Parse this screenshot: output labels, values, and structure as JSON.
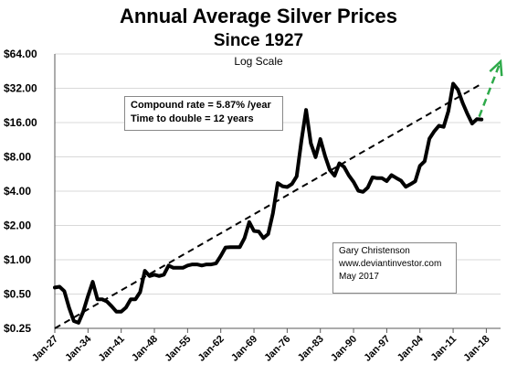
{
  "title": "Annual Average Silver Prices",
  "subtitle": "Since 1927",
  "scale_note": "Log Scale",
  "annotation_rate": {
    "line1": "Compound rate = 5.87% /year",
    "line2": "Time to double = 12 years"
  },
  "credit": {
    "line1": "Gary Christenson",
    "line2": "www.deviantinvestor.com",
    "line3": "May 2017"
  },
  "colors": {
    "price_line": "#000000",
    "trend_line": "#000000",
    "projection": "#2eaa4a"
  },
  "chart_data": {
    "type": "line",
    "y_scale": "log2",
    "ylim": [
      0.25,
      64
    ],
    "xlim": [
      1927,
      2021
    ],
    "y_ticks": [
      0.25,
      0.5,
      1,
      2,
      4,
      8,
      16,
      32,
      64
    ],
    "y_tick_labels": [
      "$0.25",
      "$0.50",
      "$1.00",
      "$2.00",
      "$4.00",
      "$8.00",
      "$16.00",
      "$32.00",
      "$64.00"
    ],
    "x_ticks": [
      1927,
      1934,
      1941,
      1948,
      1955,
      1962,
      1969,
      1976,
      1983,
      1990,
      1997,
      2004,
      2011,
      2018
    ],
    "x_tick_labels": [
      "Jan-27",
      "Jan-34",
      "Jan-41",
      "Jan-48",
      "Jan-55",
      "Jan-62",
      "Jan-69",
      "Jan-76",
      "Jan-83",
      "Jan-90",
      "Jan-97",
      "Jan-04",
      "Jan-11",
      "Jan-18"
    ],
    "series": [
      {
        "x": [
          1927,
          1928,
          1929,
          1930,
          1931,
          1932,
          1933,
          1934,
          1935,
          1936,
          1937,
          1938,
          1939,
          1940,
          1941,
          1942,
          1943,
          1944,
          1945,
          1946,
          1947,
          1948,
          1949,
          1950,
          1951,
          1952,
          1953,
          1954,
          1955,
          1956,
          1957,
          1958,
          1959,
          1960,
          1961,
          1962,
          1963,
          1964,
          1965,
          1966,
          1967,
          1968,
          1969,
          1970,
          1971,
          1972,
          1973,
          1974,
          1975,
          1976,
          1977,
          1978,
          1979,
          1980,
          1981,
          1982,
          1983,
          1984,
          1985,
          1986,
          1987,
          1988,
          1989,
          1990,
          1991,
          1992,
          1993,
          1994,
          1995,
          1996,
          1997,
          1998,
          1999,
          2000,
          2001,
          2002,
          2003,
          2004,
          2005,
          2006,
          2007,
          2008,
          2009,
          2010,
          2011,
          2012,
          2013,
          2014,
          2015,
          2016,
          2017
        ],
        "values": [
          0.57,
          0.58,
          0.53,
          0.38,
          0.29,
          0.28,
          0.35,
          0.48,
          0.64,
          0.45,
          0.45,
          0.43,
          0.39,
          0.35,
          0.35,
          0.38,
          0.45,
          0.45,
          0.52,
          0.8,
          0.72,
          0.74,
          0.72,
          0.74,
          0.89,
          0.85,
          0.85,
          0.85,
          0.89,
          0.91,
          0.91,
          0.89,
          0.91,
          0.91,
          0.93,
          1.08,
          1.28,
          1.29,
          1.29,
          1.29,
          1.55,
          2.14,
          1.79,
          1.77,
          1.55,
          1.68,
          2.56,
          4.71,
          4.42,
          4.35,
          4.62,
          5.4,
          11.09,
          20.63,
          10.52,
          7.95,
          11.44,
          8.14,
          6.14,
          5.47,
          7.01,
          6.53,
          5.5,
          4.82,
          4.04,
          3.94,
          4.3,
          5.29,
          5.2,
          5.2,
          4.9,
          5.54,
          5.22,
          4.95,
          4.37,
          4.6,
          4.88,
          6.67,
          7.32,
          11.55,
          13.38,
          14.99,
          14.67,
          20.19,
          35.12,
          31.15,
          23.79,
          19.08,
          15.68,
          17.14,
          17.05
        ]
      }
    ],
    "trend": {
      "x": [
        1927,
        2017
      ],
      "values": [
        0.25,
        35
      ]
    },
    "projection": {
      "x": [
        2016.5,
        2021
      ],
      "values": [
        18,
        55
      ]
    }
  }
}
